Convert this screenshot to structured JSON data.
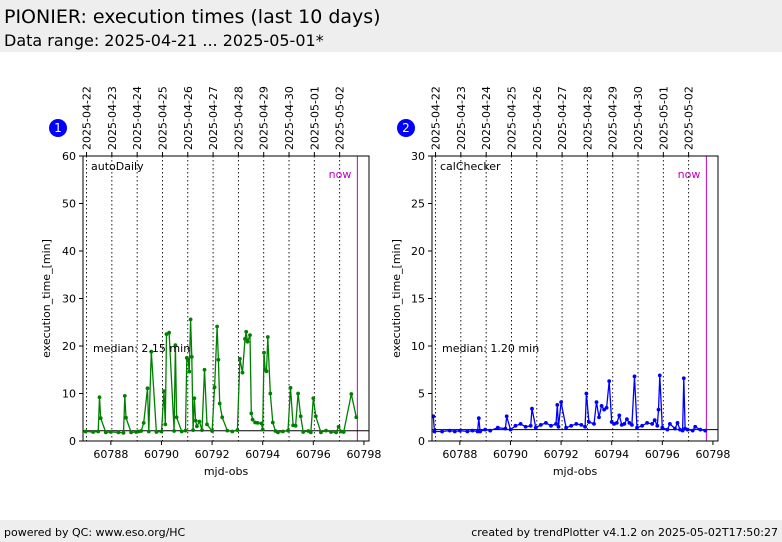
{
  "header": {
    "title": "PIONIER: execution times (last 10 days)",
    "subtitle": "Data range: 2025-04-21 ... 2025-05-01*"
  },
  "footer": {
    "left": "powered by QC: www.eso.org/HC",
    "right": "created by trendPlotter v4.1.2 on 2025-05-02T17:50:27"
  },
  "chart_data": [
    {
      "type": "line",
      "badge": "1",
      "panel_label": "autoDaily",
      "median_label": "median: 2.15 min",
      "median_value": 2.15,
      "now_label": "now",
      "now_x": 60797.74,
      "xlabel": "mjd-obs",
      "ylabel": "execution_time_[min]",
      "xlim": [
        60786.9,
        60798.2
      ],
      "ylim": [
        0,
        60
      ],
      "yticks": [
        0,
        10,
        20,
        30,
        40,
        50,
        60
      ],
      "xticks": [
        60788,
        60790,
        60792,
        60794,
        60796,
        60798
      ],
      "date_ticks": [
        {
          "x": 60787,
          "label": "2025-04-22"
        },
        {
          "x": 60788,
          "label": "2025-04-23"
        },
        {
          "x": 60789,
          "label": "2025-04-24"
        },
        {
          "x": 60790,
          "label": "2025-04-25"
        },
        {
          "x": 60791,
          "label": "2025-04-26"
        },
        {
          "x": 60792,
          "label": "2025-04-27"
        },
        {
          "x": 60793,
          "label": "2025-04-28"
        },
        {
          "x": 60794,
          "label": "2025-04-29"
        },
        {
          "x": 60795,
          "label": "2025-04-30"
        },
        {
          "x": 60796,
          "label": "2025-05-01"
        },
        {
          "x": 60797,
          "label": "2025-05-02"
        }
      ],
      "color": "#008000",
      "series": [
        {
          "x": [
            60787.0,
            60787.3,
            60787.5,
            60787.55,
            60787.6,
            60787.8,
            60788.0,
            60788.3,
            60788.5,
            60788.55,
            60788.6,
            60788.8,
            60789.0,
            60789.1,
            60789.2,
            60789.3,
            60789.45,
            60789.5,
            60789.6,
            60789.8,
            60790.0,
            60790.1,
            60790.15,
            60790.2,
            60790.3,
            60790.5,
            60790.55,
            60790.6,
            60790.8,
            60790.95,
            60791.0,
            60791.05,
            60791.1,
            60791.15,
            60791.2,
            60791.25,
            60791.3,
            60791.35,
            60791.4,
            60791.5,
            60791.6,
            60791.7,
            60791.8,
            60792.0,
            60792.1,
            60792.2,
            60792.25,
            60792.3,
            60792.4,
            60792.6,
            60792.8,
            60793.0,
            60793.1,
            60793.2,
            60793.3,
            60793.35,
            60793.4,
            60793.5,
            60793.55,
            60793.6,
            60793.7,
            60793.8,
            60793.95,
            60794.0,
            60794.05,
            60794.1,
            60794.15,
            60794.2,
            60794.3,
            60794.4,
            60794.5,
            60794.6,
            60794.8,
            60795.0,
            60795.1,
            60795.2,
            60795.3,
            60795.4,
            60795.5,
            60795.6,
            60795.8,
            60795.9,
            60796.0,
            60796.1,
            60796.3,
            60796.5,
            60796.7,
            60796.9,
            60797.0,
            60797.1,
            60797.2,
            60797.5,
            60797.7
          ],
          "y": [
            2.0,
            1.9,
            2.0,
            9.2,
            4.8,
            1.8,
            1.9,
            1.8,
            1.7,
            9.5,
            4.9,
            1.8,
            1.9,
            2.0,
            2.1,
            3.8,
            11.1,
            2.0,
            18.8,
            1.9,
            2.0,
            10.5,
            3.5,
            22.5,
            22.8,
            2.1,
            20.2,
            5.0,
            2.0,
            2.2,
            17.5,
            17.1,
            14.6,
            25.6,
            17.7,
            2.3,
            9.0,
            4.3,
            3.1,
            4.1,
            2.3,
            15.0,
            3.5,
            2.1,
            11.3,
            24.1,
            17.1,
            7.9,
            5.0,
            2.2,
            2.0,
            2.3,
            17.3,
            14.4,
            21.5,
            23.0,
            20.9,
            22.3,
            5.8,
            4.5,
            3.9,
            3.8,
            3.7,
            2.4,
            18.6,
            15.0,
            14.7,
            21.9,
            10.0,
            3.9,
            2.1,
            1.8,
            2.0,
            2.2,
            11.2,
            3.3,
            3.2,
            10.0,
            5.2,
            1.9,
            2.1,
            1.8,
            9.0,
            5.2,
            1.8,
            2.2,
            1.9,
            1.8,
            3.0,
            2.0,
            1.9,
            9.9,
            5.0
          ]
        }
      ]
    },
    {
      "type": "line",
      "badge": "2",
      "panel_label": "calChecker",
      "median_label": "median: 1.20 min",
      "median_value": 1.2,
      "now_label": "now",
      "now_x": 60797.74,
      "xlabel": "mjd-obs",
      "ylabel": "execution_time_[min]",
      "xlim": [
        60786.9,
        60798.2
      ],
      "ylim": [
        0,
        30
      ],
      "yticks": [
        0,
        5,
        10,
        15,
        20,
        25,
        30
      ],
      "xticks": [
        60788,
        60790,
        60792,
        60794,
        60796,
        60798
      ],
      "date_ticks": [
        {
          "x": 60787,
          "label": "2025-04-22"
        },
        {
          "x": 60788,
          "label": "2025-04-23"
        },
        {
          "x": 60789,
          "label": "2025-04-24"
        },
        {
          "x": 60790,
          "label": "2025-04-25"
        },
        {
          "x": 60791,
          "label": "2025-04-26"
        },
        {
          "x": 60792,
          "label": "2025-04-27"
        },
        {
          "x": 60793,
          "label": "2025-04-28"
        },
        {
          "x": 60794,
          "label": "2025-04-29"
        },
        {
          "x": 60795,
          "label": "2025-04-30"
        },
        {
          "x": 60796,
          "label": "2025-05-01"
        },
        {
          "x": 60797,
          "label": "2025-05-02"
        }
      ],
      "color": "#0000ff",
      "series": [
        {
          "x": [
            60786.95,
            60787.0,
            60787.3,
            60787.6,
            60787.8,
            60788.0,
            60788.3,
            60788.5,
            60788.7,
            60788.75,
            60788.8,
            60789.0,
            60789.2,
            60789.5,
            60789.8,
            60789.85,
            60790.0,
            60790.2,
            60790.4,
            60790.6,
            60790.8,
            60790.85,
            60791.0,
            60791.2,
            60791.4,
            60791.6,
            60791.8,
            60791.85,
            60791.9,
            60792.0,
            60792.2,
            60792.4,
            60792.6,
            60792.8,
            60792.95,
            60793.0,
            60793.1,
            60793.3,
            60793.4,
            60793.5,
            60793.6,
            60793.7,
            60793.8,
            60793.9,
            60794.0,
            60794.1,
            60794.2,
            60794.3,
            60794.4,
            60794.5,
            60794.6,
            60794.7,
            60794.8,
            60794.9,
            60795.0,
            60795.2,
            60795.4,
            60795.6,
            60795.7,
            60795.8,
            60795.85,
            60795.9,
            60796.0,
            60796.2,
            60796.3,
            60796.5,
            60796.6,
            60796.7,
            60796.8,
            60796.85,
            60796.9,
            60797.0,
            60797.2,
            60797.3,
            60797.5,
            60797.7
          ],
          "y": [
            2.6,
            1.0,
            1.0,
            1.1,
            1.0,
            1.1,
            1.0,
            1.1,
            1.0,
            2.4,
            1.0,
            1.2,
            1.1,
            1.4,
            1.3,
            2.6,
            1.2,
            1.6,
            1.8,
            1.5,
            1.6,
            3.4,
            1.4,
            1.7,
            1.9,
            1.6,
            1.8,
            3.8,
            1.5,
            4.1,
            1.4,
            1.6,
            1.8,
            1.7,
            1.5,
            5.0,
            2.0,
            1.8,
            4.1,
            2.5,
            3.7,
            3.3,
            3.5,
            6.3,
            2.0,
            1.8,
            1.9,
            2.7,
            1.7,
            1.8,
            2.3,
            1.9,
            1.7,
            6.8,
            1.4,
            1.6,
            1.9,
            1.8,
            2.2,
            1.6,
            3.3,
            6.9,
            1.4,
            1.2,
            1.8,
            1.3,
            1.9,
            1.2,
            1.1,
            6.6,
            1.3,
            1.2,
            1.1,
            1.5,
            1.2,
            1.1
          ]
        }
      ]
    }
  ]
}
